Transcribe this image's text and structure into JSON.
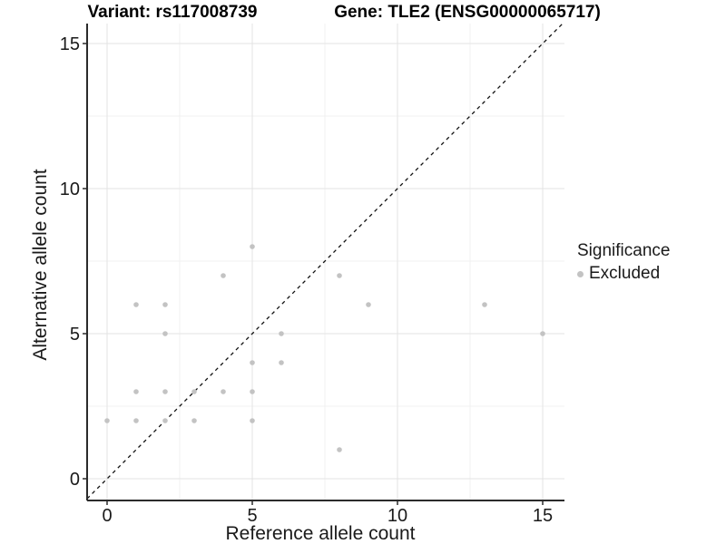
{
  "chart_data": {
    "type": "scatter",
    "title_left": "Variant: rs117008739",
    "title_right": "Gene: TLE2 (ENSG00000065717)",
    "xlabel": "Reference allele count",
    "ylabel": "Alternative allele count",
    "x_ticks": [
      0,
      5,
      10,
      15
    ],
    "y_ticks": [
      0,
      5,
      10,
      15
    ],
    "x_minor_gridlines": [
      2.5,
      7.5,
      12.5
    ],
    "y_minor_gridlines": [
      2.5,
      7.5,
      12.5
    ],
    "xlim": [
      -0.69,
      15.75
    ],
    "ylim": [
      -0.75,
      15.69
    ],
    "grid": true,
    "identity_line": {
      "style": "dashed",
      "slope": 1,
      "intercept": 0
    },
    "series": [
      {
        "name": "Excluded",
        "color": "#c3c3c3",
        "points": [
          [
            0,
            2
          ],
          [
            1,
            2
          ],
          [
            1,
            3
          ],
          [
            1,
            6
          ],
          [
            2,
            2
          ],
          [
            2,
            3
          ],
          [
            2,
            5
          ],
          [
            2,
            6
          ],
          [
            3,
            2
          ],
          [
            3,
            3
          ],
          [
            4,
            3
          ],
          [
            4,
            7
          ],
          [
            5,
            2
          ],
          [
            5,
            3
          ],
          [
            5,
            4
          ],
          [
            5,
            8
          ],
          [
            6,
            4
          ],
          [
            6,
            5
          ],
          [
            8,
            1
          ],
          [
            8,
            7
          ],
          [
            9,
            6
          ],
          [
            13,
            6
          ],
          [
            15,
            5
          ]
        ]
      }
    ],
    "legend": {
      "title": "Significance",
      "position": "right",
      "items": [
        {
          "label": "Excluded",
          "color": "#c3c3c3",
          "marker": "circle"
        }
      ]
    },
    "colors": {
      "point": "#c3c3c3",
      "grid_major": "#e3e3e3",
      "grid_minor": "#f1f1f1",
      "axis_line": "#2b2b2b",
      "identity_line": "#111111",
      "tick_text": "#1a1a1a",
      "title_text": "#000000"
    }
  }
}
